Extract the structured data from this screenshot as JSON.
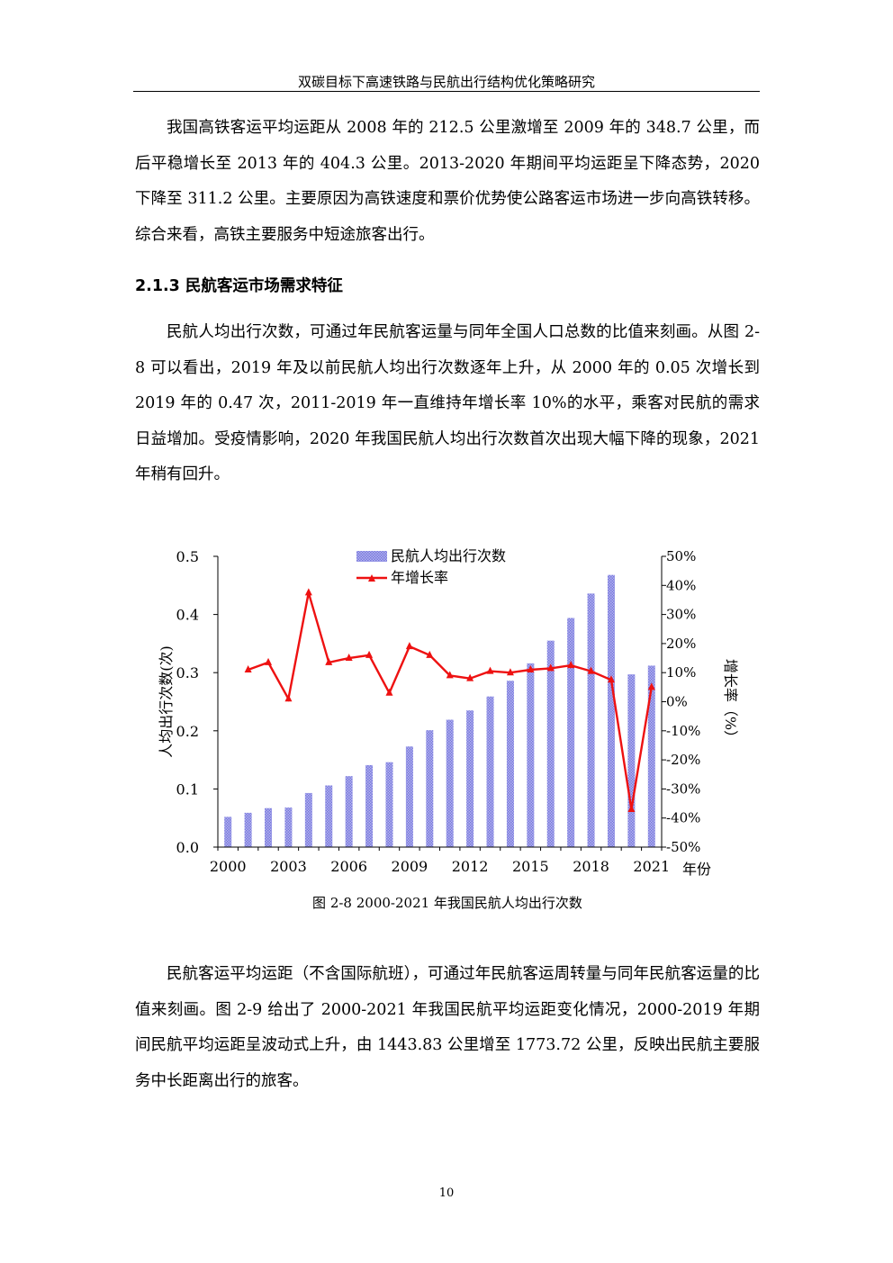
{
  "header": {
    "title": "双碳目标下高速铁路与民航出行结构优化策略研究"
  },
  "paragraphs": {
    "p1": "我国高铁客运平均运距从 2008 年的 212.5 公里激增至 2009 年的 348.7 公里，而后平稳增长至 2013 年的 404.3 公里。2013-2020 年期间平均运距呈下降态势，2020 下降至 311.2 公里。主要原因为高铁速度和票价优势使公路客运市场进一步向高铁转移。综合来看，高铁主要服务中短途旅客出行。",
    "p2": "民航人均出行次数，可通过年民航客运量与同年全国人口总数的比值来刻画。从图 2-8 可以看出，2019 年及以前民航人均出行次数逐年上升，从 2000 年的 0.05 次增长到 2019 年的 0.47 次，2011-2019 年一直维持年增长率 10%的水平，乘客对民航的需求日益增加。受疫情影响，2020 年我国民航人均出行次数首次出现大幅下降的现象，2021 年稍有回升。",
    "p3": "民航客运平均运距（不含国际航班），可通过年民航客运周转量与同年民航客运量的比值来刻画。图 2-9 给出了 2000-2021 年我国民航平均运距变化情况，2000-2019 年期间民航平均运距呈波动式上升，由 1443.83 公里增至 1773.72 公里，反映出民航主要服务中长距离出行的旅客。"
  },
  "section": {
    "heading": "2.1.3  民航客运市场需求特征"
  },
  "chart_data": {
    "type": "bar",
    "title": "",
    "xlabel": "年份",
    "ylabel": "人均出行次数(次)",
    "y2label": "增长率（%）",
    "ylim": [
      0,
      0.5
    ],
    "y2lim": [
      -50,
      50
    ],
    "x_tick_labels": [
      "2000",
      "2003",
      "2006",
      "2009",
      "2012",
      "2015",
      "2018",
      "2021"
    ],
    "y_tick_labels": [
      "0.0",
      "0.1",
      "0.2",
      "0.3",
      "0.4",
      "0.5"
    ],
    "y2_tick_labels": [
      "-50%",
      "-40%",
      "-30%",
      "-20%",
      "-10%",
      "0%",
      "10%",
      "20%",
      "30%",
      "40%",
      "50%"
    ],
    "categories": [
      "2000",
      "2001",
      "2002",
      "2003",
      "2004",
      "2005",
      "2006",
      "2007",
      "2008",
      "2009",
      "2010",
      "2011",
      "2012",
      "2013",
      "2014",
      "2015",
      "2016",
      "2017",
      "2018",
      "2019",
      "2020",
      "2021"
    ],
    "series": [
      {
        "name": "民航人均出行次数",
        "kind": "bar",
        "axis": "left",
        "color": "#8c8ce6",
        "values": [
          0.052,
          0.059,
          0.067,
          0.068,
          0.093,
          0.106,
          0.122,
          0.141,
          0.146,
          0.173,
          0.201,
          0.219,
          0.235,
          0.259,
          0.286,
          0.316,
          0.355,
          0.394,
          0.436,
          0.468,
          0.297,
          0.312
        ]
      },
      {
        "name": "年增长率",
        "kind": "line",
        "axis": "right",
        "color": "#ee1111",
        "values": [
          null,
          11,
          13.5,
          1,
          37.5,
          13.5,
          15,
          16,
          3,
          19,
          16,
          9,
          8,
          10.5,
          10,
          11,
          11.5,
          12.5,
          10.5,
          7.5,
          -37,
          5
        ]
      }
    ],
    "legend_position": "top-center",
    "grid": false
  },
  "caption": "图 2-8 2000-2021 年我国民航人均出行次数",
  "page_number": "10"
}
